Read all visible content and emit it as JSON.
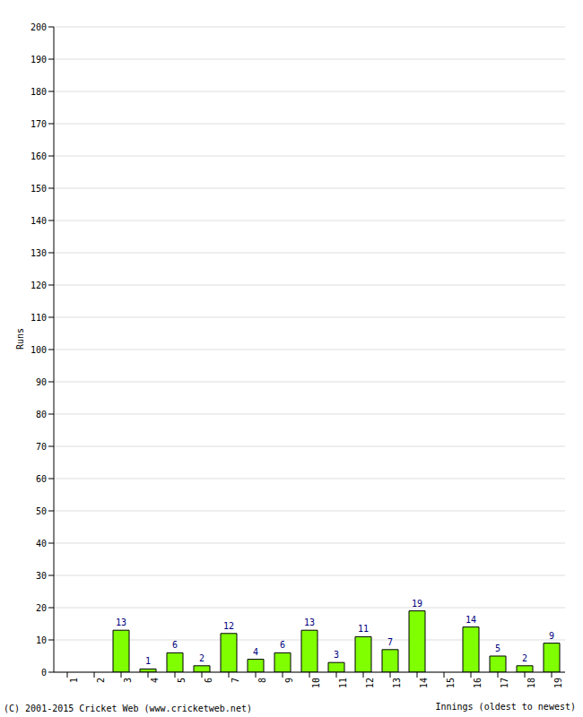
{
  "chart_data": {
    "type": "bar",
    "categories": [
      "1",
      "2",
      "3",
      "4",
      "5",
      "6",
      "7",
      "8",
      "9",
      "10",
      "11",
      "12",
      "13",
      "14",
      "15",
      "16",
      "17",
      "18",
      "19"
    ],
    "values": [
      0,
      0,
      13,
      1,
      6,
      2,
      12,
      4,
      6,
      13,
      3,
      11,
      7,
      19,
      0,
      14,
      5,
      2,
      9
    ],
    "color": "#80ff00",
    "ylabel": "Runs",
    "xlabel": "Innings (oldest to newest)",
    "annotation": "(C) 2001-2015 Cricket Web (www.cricketweb.net)",
    "ylim": [
      0,
      200
    ],
    "yticks": [
      0,
      10,
      20,
      30,
      40,
      50,
      60,
      70,
      80,
      90,
      100,
      110,
      120,
      130,
      140,
      150,
      160,
      170,
      180,
      190,
      200
    ],
    "grid": true,
    "data_labels": true
  }
}
